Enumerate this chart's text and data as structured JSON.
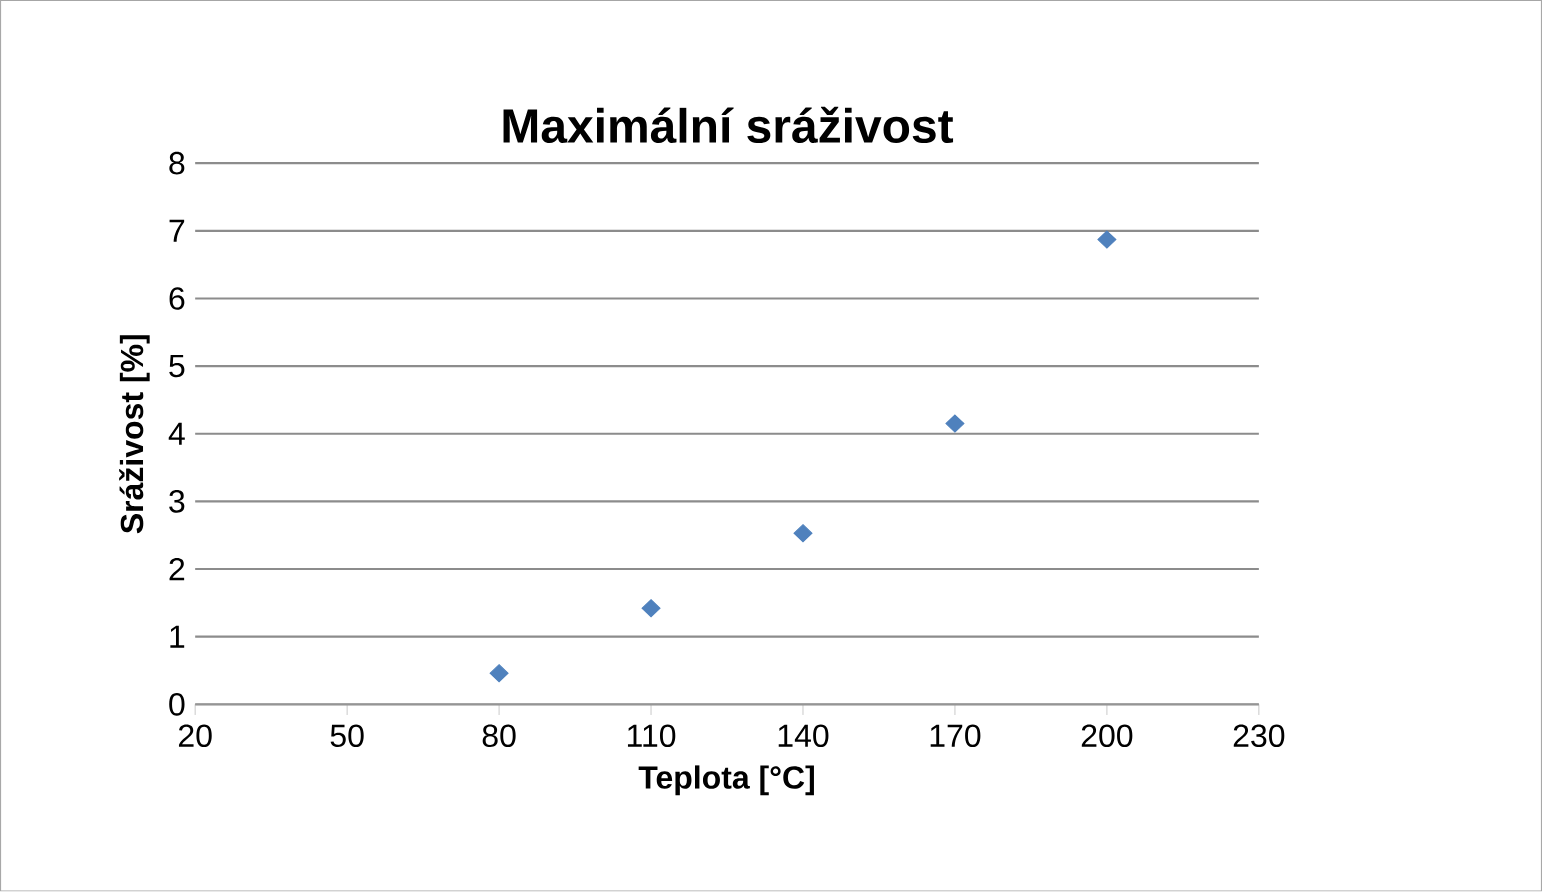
{
  "chart_data": {
    "type": "scatter",
    "title": "Maximální sráživost",
    "xlabel": "Teplota [°C]",
    "ylabel": "Sráživost [%]",
    "x": [
      80,
      110,
      140,
      170,
      200
    ],
    "series": [
      {
        "color": "#4f81bd",
        "values": [
          0.46,
          1.42,
          2.53,
          4.15,
          6.87
        ]
      }
    ],
    "xlim": [
      20,
      230
    ],
    "ylim": [
      0,
      8
    ],
    "xticks": [
      20,
      50,
      80,
      110,
      140,
      170,
      200,
      230
    ],
    "yticks": [
      0,
      1,
      2,
      3,
      4,
      5,
      6,
      7,
      8
    ],
    "grid": "y",
    "marker": "diamond"
  }
}
